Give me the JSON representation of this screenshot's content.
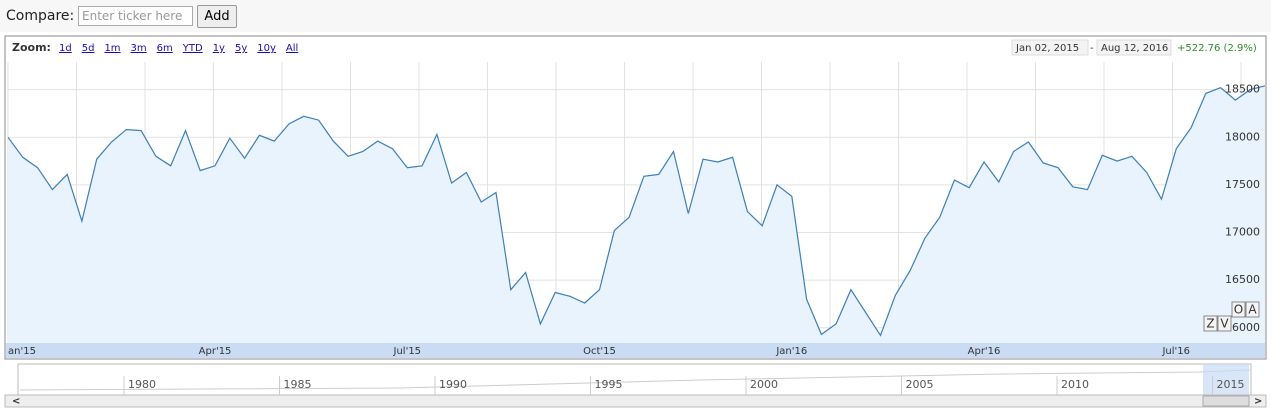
{
  "toolbar": {
    "compare_label": "Compare:",
    "placeholder": "Enter ticker here",
    "add_button": "Add"
  },
  "zoom": {
    "label": "Zoom:",
    "options": [
      "1d",
      "5d",
      "1m",
      "3m",
      "6m",
      "YTD",
      "1y",
      "5y",
      "10y",
      "All"
    ]
  },
  "range": {
    "start": "Jan 02, 2015",
    "separator": "-",
    "end": "Aug 12, 2016",
    "change": "+522.76 (2.9%)"
  },
  "corner_buttons": [
    "Z",
    "V",
    "O",
    "A"
  ],
  "navigator": {
    "labels": [
      "1980",
      "1985",
      "1990",
      "1995",
      "2000",
      "2005",
      "2010",
      "2015"
    ]
  },
  "chart_data": {
    "type": "line",
    "color": "#3d7fb8",
    "fill": "#e8f3fd",
    "grid": true,
    "categories": [
      "an'15",
      null,
      null,
      null,
      null,
      null,
      null,
      null,
      null,
      null,
      null,
      null,
      null,
      null,
      "Apr'15",
      null,
      null,
      null,
      null,
      null,
      null,
      null,
      null,
      null,
      null,
      null,
      null,
      "Jul'15",
      null,
      null,
      null,
      null,
      null,
      null,
      null,
      null,
      null,
      null,
      null,
      null,
      "Oct'15",
      null,
      null,
      null,
      null,
      null,
      null,
      null,
      null,
      null,
      null,
      null,
      null,
      "Jan'16",
      null,
      null,
      null,
      null,
      null,
      null,
      null,
      null,
      null,
      null,
      null,
      null,
      "Apr'16",
      null,
      null,
      null,
      null,
      null,
      null,
      null,
      null,
      null,
      null,
      null,
      null,
      "Jul'16",
      null,
      null,
      null,
      null,
      null,
      null
    ],
    "values": [
      18000,
      17790,
      17680,
      17450,
      17610,
      17120,
      17770,
      17950,
      18080,
      18070,
      17800,
      17700,
      18070,
      17650,
      17700,
      17990,
      17780,
      18020,
      17960,
      18140,
      18220,
      18180,
      17960,
      17800,
      17850,
      17960,
      17880,
      17680,
      17700,
      18030,
      17520,
      17630,
      17320,
      17420,
      16400,
      16580,
      16040,
      16370,
      16330,
      16260,
      16400,
      17020,
      17160,
      17590,
      17610,
      17850,
      17200,
      17770,
      17740,
      17790,
      17220,
      17070,
      17500,
      17380,
      16300,
      15930,
      16040,
      16400,
      16160,
      15920,
      16340,
      16600,
      16940,
      17160,
      17550,
      17470,
      17740,
      17530,
      17850,
      17950,
      17730,
      17680,
      17480,
      17450,
      17810,
      17750,
      17800,
      17630,
      17350,
      17880,
      18100,
      18460,
      18520,
      18390,
      18500,
      18540
    ],
    "ylim": [
      15840,
      18790
    ],
    "yticks": [
      16000,
      16500,
      17000,
      17500,
      18000,
      18500
    ]
  }
}
